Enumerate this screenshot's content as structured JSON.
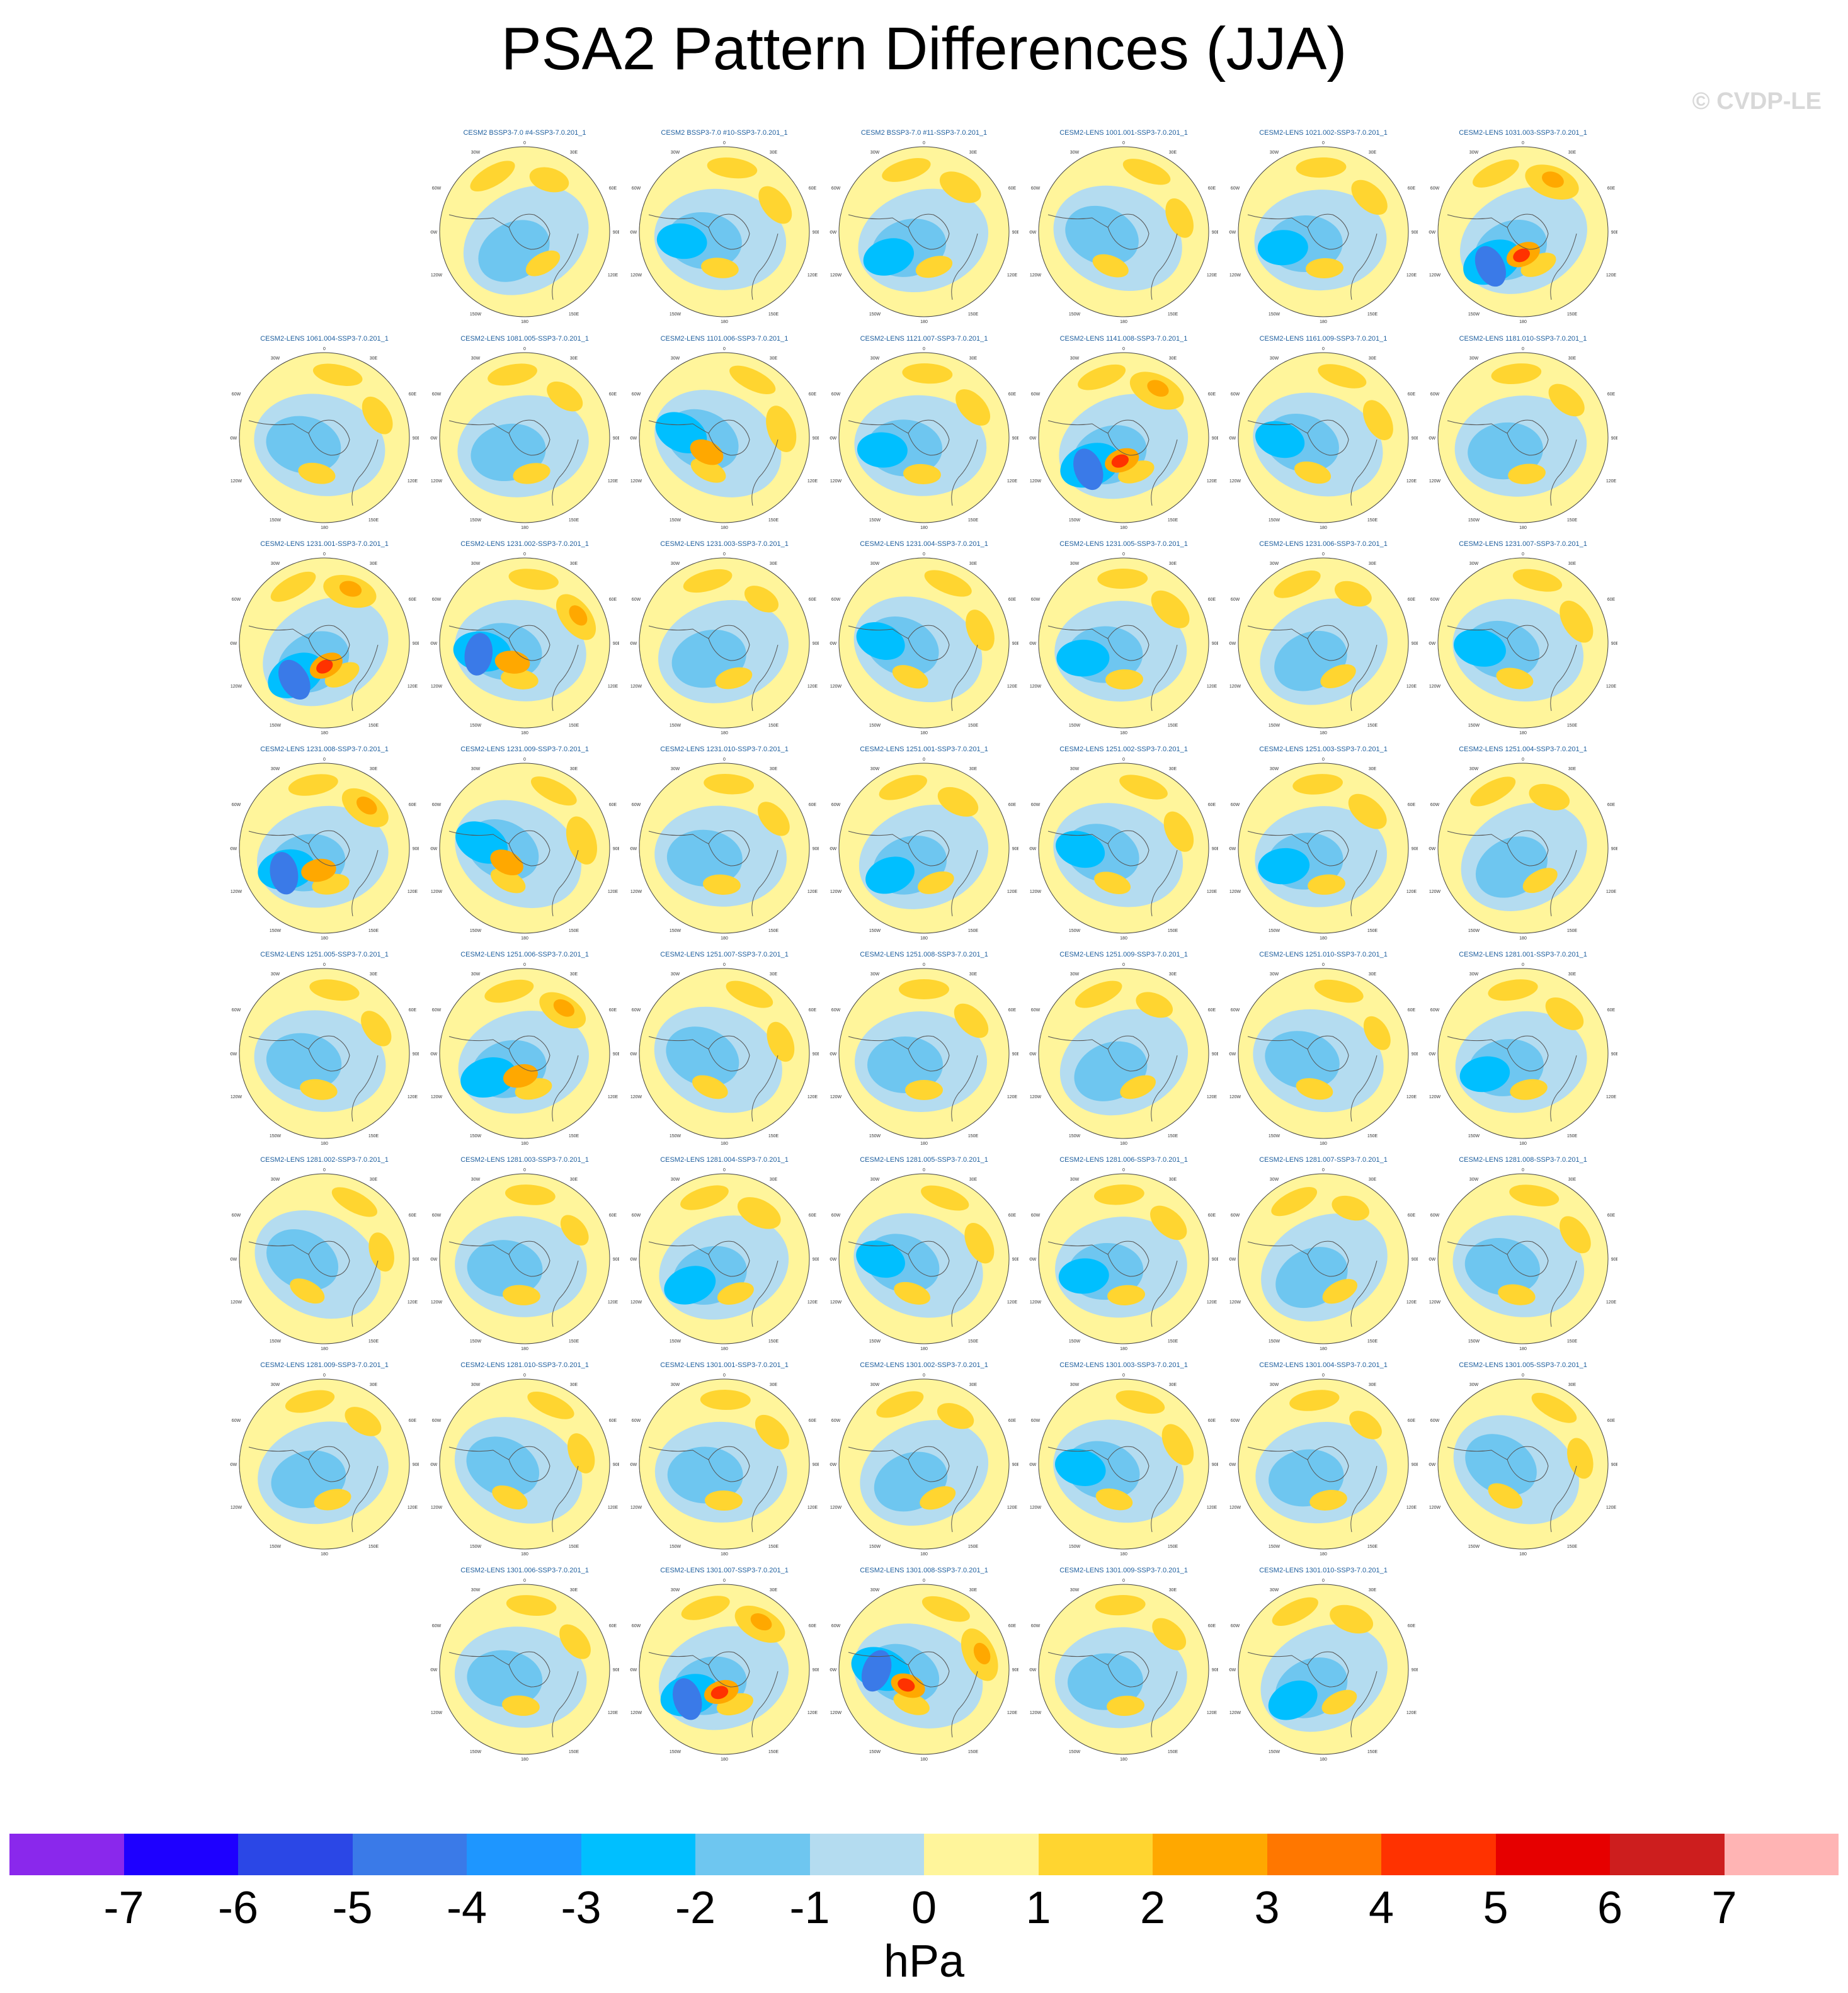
{
  "title": "PSA2 Pattern Differences (JJA)",
  "watermark": "© CVDP-LE",
  "map_axis_labels": {
    "top": "0",
    "top_left": "30W",
    "top_right": "30E",
    "upper_left": "60W",
    "upper_right": "60E",
    "left": "90W",
    "right": "90E",
    "lower_left": "120W",
    "lower_right": "120E",
    "bottom_left": "150W",
    "bottom_right": "150E",
    "bottom": "180"
  },
  "panels": [
    {
      "label": "CESM2 BSSP3-7.0 #4-SSP3-7.0.201_1",
      "row": 0,
      "col": 1,
      "strength": 0.4
    },
    {
      "label": "CESM2 BSSP3-7.0 #10-SSP3-7.0.201_1",
      "row": 0,
      "col": 2,
      "strength": 0.5
    },
    {
      "label": "CESM2 BSSP3-7.0 #11-SSP3-7.0.201_1",
      "row": 0,
      "col": 3,
      "strength": 0.55
    },
    {
      "label": "CESM2-LENS 1001.001-SSP3-7.0.201_1",
      "row": 0,
      "col": 4,
      "strength": 0.45
    },
    {
      "label": "CESM2-LENS 1021.002-SSP3-7.0.201_1",
      "row": 0,
      "col": 5,
      "strength": 0.5
    },
    {
      "label": "CESM2-LENS 1031.003-SSP3-7.0.201_1",
      "row": 0,
      "col": 6,
      "strength": 0.9
    },
    {
      "label": "CESM2-LENS 1061.004-SSP3-7.0.201_1",
      "row": 1,
      "col": 0,
      "strength": 0.45
    },
    {
      "label": "CESM2-LENS 1081.005-SSP3-7.0.201_1",
      "row": 1,
      "col": 1,
      "strength": 0.4
    },
    {
      "label": "CESM2-LENS 1101.006-SSP3-7.0.201_1",
      "row": 1,
      "col": 2,
      "strength": 0.65
    },
    {
      "label": "CESM2-LENS 1121.007-SSP3-7.0.201_1",
      "row": 1,
      "col": 3,
      "strength": 0.5
    },
    {
      "label": "CESM2-LENS 1141.008-SSP3-7.0.201_1",
      "row": 1,
      "col": 4,
      "strength": 0.95
    },
    {
      "label": "CESM2-LENS 1161.009-SSP3-7.0.201_1",
      "row": 1,
      "col": 5,
      "strength": 0.5
    },
    {
      "label": "CESM2-LENS 1181.010-SSP3-7.0.201_1",
      "row": 1,
      "col": 6,
      "strength": 0.45
    },
    {
      "label": "CESM2-LENS 1231.001-SSP3-7.0.201_1",
      "row": 2,
      "col": 0,
      "strength": 0.85
    },
    {
      "label": "CESM2-LENS 1231.002-SSP3-7.0.201_1",
      "row": 2,
      "col": 1,
      "strength": 0.8
    },
    {
      "label": "CESM2-LENS 1231.003-SSP3-7.0.201_1",
      "row": 2,
      "col": 2,
      "strength": 0.3
    },
    {
      "label": "CESM2-LENS 1231.004-SSP3-7.0.201_1",
      "row": 2,
      "col": 3,
      "strength": 0.5
    },
    {
      "label": "CESM2-LENS 1231.005-SSP3-7.0.201_1",
      "row": 2,
      "col": 4,
      "strength": 0.6
    },
    {
      "label": "CESM2-LENS 1231.006-SSP3-7.0.201_1",
      "row": 2,
      "col": 5,
      "strength": 0.35
    },
    {
      "label": "CESM2-LENS 1231.007-SSP3-7.0.201_1",
      "row": 2,
      "col": 6,
      "strength": 0.6
    },
    {
      "label": "CESM2-LENS 1231.008-SSP3-7.0.201_1",
      "row": 3,
      "col": 0,
      "strength": 0.8
    },
    {
      "label": "CESM2-LENS 1231.009-SSP3-7.0.201_1",
      "row": 3,
      "col": 1,
      "strength": 0.7
    },
    {
      "label": "CESM2-LENS 1231.010-SSP3-7.0.201_1",
      "row": 3,
      "col": 2,
      "strength": 0.4
    },
    {
      "label": "CESM2-LENS 1251.001-SSP3-7.0.201_1",
      "row": 3,
      "col": 3,
      "strength": 0.5
    },
    {
      "label": "CESM2-LENS 1251.002-SSP3-7.0.201_1",
      "row": 3,
      "col": 4,
      "strength": 0.5
    },
    {
      "label": "CESM2-LENS 1251.003-SSP3-7.0.201_1",
      "row": 3,
      "col": 5,
      "strength": 0.55
    },
    {
      "label": "CESM2-LENS 1251.004-SSP3-7.0.201_1",
      "row": 3,
      "col": 6,
      "strength": 0.45
    },
    {
      "label": "CESM2-LENS 1251.005-SSP3-7.0.201_1",
      "row": 4,
      "col": 0,
      "strength": 0.4
    },
    {
      "label": "CESM2-LENS 1251.006-SSP3-7.0.201_1",
      "row": 4,
      "col": 1,
      "strength": 0.75
    },
    {
      "label": "CESM2-LENS 1251.007-SSP3-7.0.201_1",
      "row": 4,
      "col": 2,
      "strength": 0.45
    },
    {
      "label": "CESM2-LENS 1251.008-SSP3-7.0.201_1",
      "row": 4,
      "col": 3,
      "strength": 0.45
    },
    {
      "label": "CESM2-LENS 1251.009-SSP3-7.0.201_1",
      "row": 4,
      "col": 4,
      "strength": 0.35
    },
    {
      "label": "CESM2-LENS 1251.010-SSP3-7.0.201_1",
      "row": 4,
      "col": 5,
      "strength": 0.3
    },
    {
      "label": "CESM2-LENS 1281.001-SSP3-7.0.201_1",
      "row": 4,
      "col": 6,
      "strength": 0.5
    },
    {
      "label": "CESM2-LENS 1281.002-SSP3-7.0.201_1",
      "row": 5,
      "col": 0,
      "strength": 0.4
    },
    {
      "label": "CESM2-LENS 1281.003-SSP3-7.0.201_1",
      "row": 5,
      "col": 1,
      "strength": 0.25
    },
    {
      "label": "CESM2-LENS 1281.004-SSP3-7.0.201_1",
      "row": 5,
      "col": 2,
      "strength": 0.6
    },
    {
      "label": "CESM2-LENS 1281.005-SSP3-7.0.201_1",
      "row": 5,
      "col": 3,
      "strength": 0.5
    },
    {
      "label": "CESM2-LENS 1281.006-SSP3-7.0.201_1",
      "row": 5,
      "col": 4,
      "strength": 0.5
    },
    {
      "label": "CESM2-LENS 1281.007-SSP3-7.0.201_1",
      "row": 5,
      "col": 5,
      "strength": 0.35
    },
    {
      "label": "CESM2-LENS 1281.008-SSP3-7.0.201_1",
      "row": 5,
      "col": 6,
      "strength": 0.45
    },
    {
      "label": "CESM2-LENS 1281.009-SSP3-7.0.201_1",
      "row": 6,
      "col": 0,
      "strength": 0.4
    },
    {
      "label": "CESM2-LENS 1281.010-SSP3-7.0.201_1",
      "row": 6,
      "col": 1,
      "strength": 0.45
    },
    {
      "label": "CESM2-LENS 1301.001-SSP3-7.0.201_1",
      "row": 6,
      "col": 2,
      "strength": 0.45
    },
    {
      "label": "CESM2-LENS 1301.002-SSP3-7.0.201_1",
      "row": 6,
      "col": 3,
      "strength": 0.35
    },
    {
      "label": "CESM2-LENS 1301.003-SSP3-7.0.201_1",
      "row": 6,
      "col": 4,
      "strength": 0.55
    },
    {
      "label": "CESM2-LENS 1301.004-SSP3-7.0.201_1",
      "row": 6,
      "col": 5,
      "strength": 0.3
    },
    {
      "label": "CESM2-LENS 1301.005-SSP3-7.0.201_1",
      "row": 6,
      "col": 6,
      "strength": 0.45
    },
    {
      "label": "CESM2-LENS 1301.006-SSP3-7.0.201_1",
      "row": 7,
      "col": 1,
      "strength": 0.4
    },
    {
      "label": "CESM2-LENS 1301.007-SSP3-7.0.201_1",
      "row": 7,
      "col": 2,
      "strength": 0.85
    },
    {
      "label": "CESM2-LENS 1301.008-SSP3-7.0.201_1",
      "row": 7,
      "col": 3,
      "strength": 0.9
    },
    {
      "label": "CESM2-LENS 1301.009-SSP3-7.0.201_1",
      "row": 7,
      "col": 4,
      "strength": 0.4
    },
    {
      "label": "CESM2-LENS 1301.010-SSP3-7.0.201_1",
      "row": 7,
      "col": 5,
      "strength": 0.55
    }
  ],
  "colorbar": {
    "colors": [
      "#8a28ec",
      "#1e00ff",
      "#2b47e6",
      "#3a7ae8",
      "#1e96ff",
      "#00bfff",
      "#6ec6f0",
      "#b4dcf0",
      "#fff59b",
      "#ffd530",
      "#ffa800",
      "#ff7700",
      "#ff3200",
      "#e60000",
      "#cd1e1e",
      "#ffb4b4"
    ],
    "tick_labels": [
      "-7",
      "-6",
      "-5",
      "-4",
      "-3",
      "-2",
      "-1",
      "0",
      "1",
      "2",
      "3",
      "4",
      "5",
      "6",
      "7"
    ],
    "unit": "hPa"
  }
}
